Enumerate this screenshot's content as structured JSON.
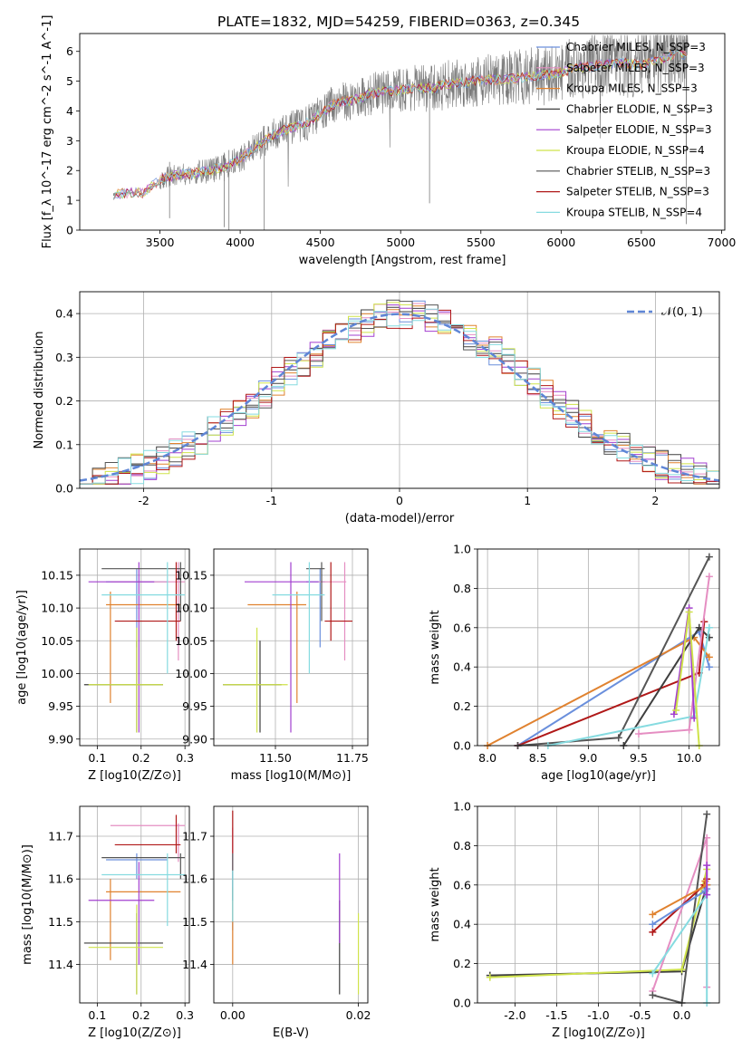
{
  "title": "PLATE=1832, MJD=54259, FIBERID=0363, z=0.345",
  "colors": {
    "Chabrier MILES": "#6a8fdc",
    "Salpeter MILES": "#e58ec2",
    "Kroupa MILES": "#e0822f",
    "Chabrier ELODIE": "#3e3e3e",
    "Salpeter ELODIE": "#a23fcf",
    "Kroupa ELODIE": "#cfe34a",
    "Chabrier STELIB": "#555555",
    "Salpeter STELIB": "#b01818",
    "Kroupa STELIB": "#86dbe0",
    "data": "#7a7a7a",
    "gaussian": "#5f86d6"
  },
  "chart_data": [
    {
      "id": "spectrum",
      "type": "line",
      "xlabel": "wavelength [Angstrom, rest frame]",
      "ylabel": "Flux [f_λ 10^-17 erg cm^-2 s^-1 A^-1]",
      "xlim": [
        3000,
        7020
      ],
      "ylim": [
        0,
        6.6
      ],
      "xticks": [
        3500,
        4000,
        4500,
        5000,
        5500,
        6000,
        6500,
        7000
      ],
      "yticks": [
        0,
        1,
        2,
        3,
        4,
        5,
        6
      ],
      "grid": false,
      "legend_position": "right",
      "legend": [
        "Chabrier MILES, N_SSP=3",
        "Salpeter MILES, N_SSP=3",
        "Kroupa MILES, N_SSP=3",
        "Chabrier ELODIE, N_SSP=3",
        "Salpeter ELODIE, N_SSP=3",
        "Kroupa ELODIE, N_SSP=4",
        "Chabrier STELIB, N_SSP=3",
        "Salpeter STELIB, N_SSP=3",
        "Kroupa STELIB, N_SSP=4"
      ],
      "continuum": {
        "x": [
          3210,
          3300,
          3400,
          3500,
          3600,
          3700,
          3800,
          3900,
          4000,
          4100,
          4200,
          4300,
          4400,
          4500,
          4600,
          4700,
          4800,
          4900,
          5000,
          5100,
          5200,
          5300,
          5400,
          5500,
          5600,
          5700,
          5800,
          5900,
          6000,
          6100,
          6200,
          6300,
          6400,
          6500,
          6600,
          6700,
          6790
        ],
        "y": [
          1.2,
          1.25,
          1.25,
          1.7,
          1.85,
          1.9,
          2.0,
          2.1,
          2.4,
          2.8,
          3.2,
          3.4,
          3.55,
          3.9,
          4.3,
          4.35,
          4.55,
          4.65,
          4.7,
          4.8,
          4.75,
          4.9,
          4.95,
          5.05,
          5.05,
          5.1,
          5.15,
          5.2,
          5.3,
          5.45,
          5.5,
          5.6,
          5.6,
          5.55,
          5.7,
          5.9,
          5.9
        ]
      }
    },
    {
      "id": "residuals",
      "type": "histogram",
      "xlabel": "(data-model)/error",
      "ylabel": "Normed distribution",
      "xlim": [
        -2.5,
        2.5
      ],
      "ylim": [
        0,
        0.45
      ],
      "xticks": [
        -2,
        -1,
        0,
        1,
        2
      ],
      "yticks": [
        0.0,
        0.1,
        0.2,
        0.3,
        0.4
      ],
      "grid": true,
      "legend_position": "top-right",
      "legend": "𝒩(0, 1)",
      "bins": [
        -2.5,
        2.5,
        50
      ]
    },
    {
      "id": "age-vs-Z",
      "type": "scatter",
      "xlabel": "Z [log10(Z/Z⊙)]",
      "ylabel": "age [log10(age/yr)]",
      "xlim": [
        0.06,
        0.31
      ],
      "ylim": [
        9.89,
        10.19
      ],
      "xticks": [
        0.1,
        0.2,
        0.3
      ],
      "yticks": [
        9.9,
        9.95,
        10.0,
        10.05,
        10.1,
        10.15
      ],
      "grid": true
    },
    {
      "id": "age-vs-mass",
      "type": "scatter",
      "xlabel": "mass [log10(M/M⊙)]",
      "ylabel": "",
      "xlim": [
        11.3,
        11.8
      ],
      "ylim": [
        9.89,
        10.19
      ],
      "xticks": [
        11.5,
        11.75
      ],
      "yticks": [
        9.9,
        9.95,
        10.0,
        10.05,
        10.1,
        10.15
      ],
      "grid": true
    },
    {
      "id": "weight-vs-age",
      "type": "line",
      "xlabel": "age [log10(age/yr)]",
      "ylabel": "mass weight",
      "xlim": [
        7.9,
        10.3
      ],
      "ylim": [
        0,
        1.0
      ],
      "xticks": [
        8.0,
        8.5,
        9.0,
        9.5,
        10.0
      ],
      "yticks": [
        0.0,
        0.2,
        0.4,
        0.6,
        0.8,
        1.0
      ],
      "grid": true,
      "series": [
        {
          "name": "Chabrier MILES",
          "x": [
            8.3,
            10.1,
            10.2
          ],
          "y": [
            0.0,
            0.58,
            0.4
          ]
        },
        {
          "name": "Kroupa MILES",
          "x": [
            8.0,
            10.05,
            10.2
          ],
          "y": [
            0.0,
            0.55,
            0.45
          ]
        },
        {
          "name": "Salpeter STELIB",
          "x": [
            8.3,
            10.1,
            10.15
          ],
          "y": [
            0.0,
            0.37,
            0.63
          ]
        },
        {
          "name": "Chabrier STELIB",
          "x": [
            8.3,
            9.3,
            10.2
          ],
          "y": [
            0.0,
            0.04,
            0.96
          ]
        },
        {
          "name": "Chabrier ELODIE",
          "x": [
            9.35,
            10.1,
            10.2
          ],
          "y": [
            0.0,
            0.6,
            0.55
          ]
        },
        {
          "name": "Kroupa STELIB",
          "x": [
            8.6,
            10.05,
            10.2
          ],
          "y": [
            0.0,
            0.15,
            0.6
          ]
        },
        {
          "name": "Salpeter MILES",
          "x": [
            9.5,
            10.0,
            10.2
          ],
          "y": [
            0.06,
            0.08,
            0.86
          ]
        },
        {
          "name": "Salpeter ELODIE",
          "x": [
            9.85,
            10.0,
            10.05
          ],
          "y": [
            0.16,
            0.7,
            0.14
          ]
        },
        {
          "name": "Kroupa ELODIE",
          "x": [
            9.87,
            10.0,
            10.1
          ],
          "y": [
            0.18,
            0.68,
            0.0
          ]
        }
      ]
    },
    {
      "id": "mass-vs-Z",
      "type": "scatter",
      "xlabel": "Z [log10(Z/Z⊙)]",
      "ylabel": "mass [log10(M/M⊙)]",
      "xlim": [
        0.06,
        0.31
      ],
      "ylim": [
        11.31,
        11.77
      ],
      "xticks": [
        0.1,
        0.2,
        0.3
      ],
      "yticks": [
        11.4,
        11.5,
        11.6,
        11.7
      ],
      "grid": true
    },
    {
      "id": "mass-vs-EBV",
      "type": "scatter",
      "xlabel": "E(B-V)",
      "ylabel": "",
      "xlim": [
        -0.003,
        0.0215
      ],
      "ylim": [
        11.31,
        11.77
      ],
      "xticks": [
        0.0,
        0.02
      ],
      "yticks": [
        11.4,
        11.5,
        11.6,
        11.7
      ],
      "grid": true
    },
    {
      "id": "weight-vs-Z",
      "type": "line",
      "xlabel": "Z [log10(Z/Z⊙)]",
      "ylabel": "mass weight",
      "xlim": [
        -2.45,
        0.45
      ],
      "ylim": [
        0,
        1.0
      ],
      "xticks": [
        -2.0,
        -1.5,
        -1.0,
        -0.5,
        0.0
      ],
      "yticks": [
        0.0,
        0.2,
        0.4,
        0.6,
        0.8,
        1.0
      ],
      "grid": true,
      "series": [
        {
          "name": "Chabrier ELODIE",
          "x": [
            -2.3,
            0.0,
            0.3
          ],
          "y": [
            0.14,
            0.16,
            0.6
          ]
        },
        {
          "name": "Kroupa ELODIE",
          "x": [
            -2.3,
            0.0,
            0.3
          ],
          "y": [
            0.13,
            0.17,
            0.68
          ]
        },
        {
          "name": "Salpeter MILES",
          "x": [
            -0.35,
            0.3,
            0.3
          ],
          "y": [
            0.06,
            0.84,
            0.08
          ]
        },
        {
          "name": "Chabrier STELIB",
          "x": [
            -0.35,
            0.0,
            0.3
          ],
          "y": [
            0.04,
            0.0,
            0.96
          ]
        },
        {
          "name": "Salpeter STELIB",
          "x": [
            -0.35,
            0.27,
            0.3
          ],
          "y": [
            0.36,
            0.6,
            0.63
          ]
        },
        {
          "name": "Kroupa MILES",
          "x": [
            -0.35,
            0.3,
            0.28
          ],
          "y": [
            0.45,
            0.6,
            0.62
          ]
        },
        {
          "name": "Chabrier MILES",
          "x": [
            -0.35,
            0.28,
            0.3
          ],
          "y": [
            0.4,
            0.57,
            0.58
          ]
        },
        {
          "name": "Kroupa STELIB",
          "x": [
            -0.35,
            0.3,
            0.3
          ],
          "y": [
            0.15,
            0.55,
            0.0
          ]
        },
        {
          "name": "Salpeter ELODIE",
          "x": [
            0.3,
            0.3
          ],
          "y": [
            0.7,
            0.55
          ]
        }
      ]
    }
  ],
  "error_bars": [
    {
      "name": "Chabrier MILES",
      "Z": 0.19,
      "Zerr": [
        0.12,
        0.26
      ],
      "age": 10.14,
      "ageerr": [
        10.04,
        10.16
      ],
      "mass": 11.645,
      "masserr": [
        11.6,
        11.66
      ],
      "ebv": 0.0,
      "ebverr": [
        11.48,
        11.62
      ]
    },
    {
      "name": "Salpeter MILES",
      "Z": 0.285,
      "Zerr": [
        0.13,
        0.3
      ],
      "age": 10.14,
      "ageerr": [
        10.02,
        10.17
      ],
      "mass": 11.725,
      "masserr": [
        11.64,
        11.73
      ],
      "ebv": 0.0,
      "ebverr": [
        11.56,
        11.72
      ]
    },
    {
      "name": "Kroupa MILES",
      "Z": 0.13,
      "Zerr": [
        0.12,
        0.29
      ],
      "age": 10.105,
      "ageerr": [
        9.955,
        10.125
      ],
      "mass": 11.57,
      "masserr": [
        11.41,
        11.6
      ],
      "ebv": 0.0,
      "ebverr": [
        11.4,
        11.58
      ]
    },
    {
      "name": "Chabrier ELODIE",
      "Z": 0.19,
      "Zerr": [
        0.07,
        0.25
      ],
      "age": 9.983,
      "ageerr": [
        9.91,
        10.05
      ],
      "mass": 11.45,
      "masserr": [
        11.33,
        11.52
      ],
      "ebv": 0.017,
      "ebverr": [
        11.33,
        11.55
      ]
    },
    {
      "name": "Salpeter ELODIE",
      "Z": 0.195,
      "Zerr": [
        0.08,
        0.23
      ],
      "age": 10.14,
      "ageerr": [
        9.91,
        10.17
      ],
      "mass": 11.55,
      "masserr": [
        11.4,
        11.64
      ],
      "ebv": 0.017,
      "ebverr": [
        11.45,
        11.66
      ]
    },
    {
      "name": "Kroupa ELODIE",
      "Z": 0.19,
      "Zerr": [
        0.08,
        0.25
      ],
      "age": 9.983,
      "ageerr": [
        9.91,
        10.07
      ],
      "mass": 11.44,
      "masserr": [
        11.33,
        11.54
      ],
      "ebv": 0.02,
      "ebverr": [
        11.33,
        11.52
      ]
    },
    {
      "name": "Chabrier STELIB",
      "Z": 0.29,
      "Zerr": [
        0.11,
        0.3
      ],
      "age": 10.16,
      "ageerr": [
        10.08,
        10.17
      ],
      "mass": 11.65,
      "masserr": [
        11.6,
        11.66
      ],
      "ebv": 0.0,
      "ebverr": [
        11.55,
        11.66
      ]
    },
    {
      "name": "Salpeter STELIB",
      "Z": 0.28,
      "Zerr": [
        0.14,
        0.29
      ],
      "age": 10.08,
      "ageerr": [
        10.05,
        10.17
      ],
      "mass": 11.68,
      "masserr": [
        11.66,
        11.75
      ],
      "ebv": 0.0,
      "ebverr": [
        11.66,
        11.76
      ]
    },
    {
      "name": "Kroupa STELIB",
      "Z": 0.26,
      "Zerr": [
        0.11,
        0.3
      ],
      "age": 10.12,
      "ageerr": [
        10.0,
        10.17
      ],
      "mass": 11.61,
      "masserr": [
        11.49,
        11.66
      ],
      "ebv": 0.0,
      "ebverr": [
        11.5,
        11.62
      ]
    }
  ]
}
